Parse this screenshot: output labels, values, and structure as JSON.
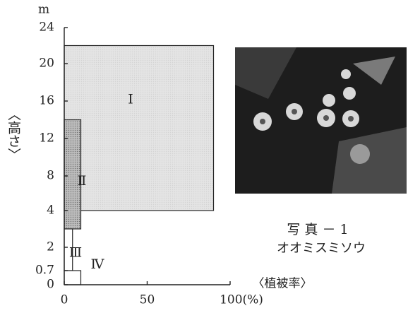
{
  "chart_data": {
    "type": "layer",
    "y_unit": "m",
    "y_label": "〈高さ〉",
    "x_label": "〈植被率〉",
    "yticks": [
      0,
      0.7,
      2,
      4,
      8,
      12,
      16,
      20,
      24
    ],
    "xlim": [
      0,
      100
    ],
    "xticks": [
      0,
      50,
      {
        "value": 100,
        "label": "100(%)"
      }
    ],
    "layers": [
      {
        "name": "Ⅰ",
        "bottom": 4,
        "top": 22,
        "cover": 90,
        "color": "#e4e4e4"
      },
      {
        "name": "Ⅱ",
        "bottom": 3,
        "top": 14,
        "cover": 10,
        "color": "#bdbdbd"
      },
      {
        "name": "Ⅲ",
        "bottom": 0.7,
        "top": 3,
        "cover": 5,
        "color": "#ffffff"
      },
      {
        "name": "Ⅳ",
        "bottom": 0,
        "top": 0.7,
        "cover": 10,
        "color": "#ffffff"
      }
    ],
    "photo_caption": "写 真 － 1",
    "photo_subject": "オオミスミソウ"
  }
}
